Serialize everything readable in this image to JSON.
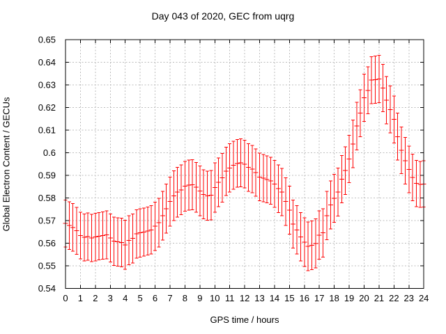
{
  "chart_data": {
    "type": "scatter",
    "subtype": "yerrorbars",
    "title": "Day 043 of 2020, GEC from uqrg",
    "xlabel": "GPS time / hours",
    "ylabel": "Global Electron Content / GECUs",
    "xlim": [
      0,
      24
    ],
    "ylim": [
      0.54,
      0.65
    ],
    "x_ticks": [
      0,
      1,
      2,
      3,
      4,
      5,
      6,
      7,
      8,
      9,
      10,
      11,
      12,
      13,
      14,
      15,
      16,
      17,
      18,
      19,
      20,
      21,
      22,
      23,
      24
    ],
    "y_ticks": [
      0.54,
      0.55,
      0.56,
      0.57,
      0.58,
      0.59,
      0.6,
      0.61,
      0.62,
      0.63,
      0.64,
      0.65
    ],
    "y_tick_labels": [
      "0.54",
      "0.55",
      "0.56",
      "0.57",
      "0.58",
      "0.59",
      "0.6",
      "0.61",
      "0.62",
      "0.63",
      "0.64",
      "0.65"
    ],
    "grid": true,
    "legend": "none",
    "colors": {
      "series": "#ff0000",
      "grid": "#bcbcbc",
      "axis": "#000000",
      "background": "#ffffff"
    },
    "points_format": [
      "gps_hour",
      "gec_gecu",
      "error_gecu"
    ],
    "points": [
      [
        0,
        0.5687,
        0.0104
      ],
      [
        0.25,
        0.5678,
        0.0105
      ],
      [
        0.5,
        0.567,
        0.0105
      ],
      [
        0.75,
        0.5655,
        0.0104
      ],
      [
        1,
        0.5634,
        0.0103
      ],
      [
        1.25,
        0.5626,
        0.0104
      ],
      [
        1.5,
        0.5629,
        0.0105
      ],
      [
        1.75,
        0.5623,
        0.0104
      ],
      [
        2,
        0.5627,
        0.0105
      ],
      [
        2.25,
        0.5631,
        0.0105
      ],
      [
        2.5,
        0.5634,
        0.0105
      ],
      [
        2.75,
        0.5637,
        0.0106
      ],
      [
        3,
        0.5623,
        0.0106
      ],
      [
        3.25,
        0.5609,
        0.0107
      ],
      [
        3.5,
        0.5606,
        0.0107
      ],
      [
        3.75,
        0.5603,
        0.0108
      ],
      [
        4,
        0.5593,
        0.0109
      ],
      [
        4.25,
        0.5613,
        0.0108
      ],
      [
        4.5,
        0.5621,
        0.0108
      ],
      [
        4.75,
        0.5641,
        0.0107
      ],
      [
        5,
        0.5646,
        0.0107
      ],
      [
        5.25,
        0.5649,
        0.0106
      ],
      [
        5.5,
        0.5654,
        0.0106
      ],
      [
        5.75,
        0.5659,
        0.0107
      ],
      [
        6,
        0.5675,
        0.0107
      ],
      [
        6.25,
        0.5691,
        0.0108
      ],
      [
        6.5,
        0.5722,
        0.0108
      ],
      [
        6.75,
        0.5753,
        0.0109
      ],
      [
        7,
        0.5784,
        0.0109
      ],
      [
        7.25,
        0.581,
        0.011
      ],
      [
        7.5,
        0.5826,
        0.011
      ],
      [
        7.75,
        0.5836,
        0.011
      ],
      [
        8,
        0.5852,
        0.011
      ],
      [
        8.25,
        0.5857,
        0.0111
      ],
      [
        8.5,
        0.5859,
        0.0111
      ],
      [
        8.75,
        0.5847,
        0.011
      ],
      [
        9,
        0.5831,
        0.011
      ],
      [
        9.25,
        0.5816,
        0.0109
      ],
      [
        9.5,
        0.581,
        0.0109
      ],
      [
        9.75,
        0.5812,
        0.0109
      ],
      [
        10,
        0.5846,
        0.0109
      ],
      [
        10.25,
        0.5869,
        0.0108
      ],
      [
        10.5,
        0.5889,
        0.0108
      ],
      [
        10.75,
        0.5918,
        0.0107
      ],
      [
        11,
        0.5933,
        0.0107
      ],
      [
        11.25,
        0.5945,
        0.0106
      ],
      [
        11.5,
        0.5953,
        0.0106
      ],
      [
        11.75,
        0.5956,
        0.0106
      ],
      [
        12,
        0.595,
        0.0106
      ],
      [
        12.25,
        0.5935,
        0.0105
      ],
      [
        12.5,
        0.5928,
        0.0105
      ],
      [
        12.75,
        0.5912,
        0.0105
      ],
      [
        13,
        0.5893,
        0.0105
      ],
      [
        13.25,
        0.5888,
        0.0105
      ],
      [
        13.5,
        0.5882,
        0.0104
      ],
      [
        13.75,
        0.5876,
        0.0104
      ],
      [
        14,
        0.5862,
        0.0104
      ],
      [
        14.25,
        0.5841,
        0.0105
      ],
      [
        14.5,
        0.5826,
        0.0105
      ],
      [
        14.75,
        0.5784,
        0.0106
      ],
      [
        15,
        0.5746,
        0.0106
      ],
      [
        15.25,
        0.5685,
        0.0106
      ],
      [
        15.5,
        0.5659,
        0.0107
      ],
      [
        15.75,
        0.5628,
        0.0107
      ],
      [
        16,
        0.5605,
        0.0108
      ],
      [
        16.25,
        0.5586,
        0.0108
      ],
      [
        16.5,
        0.5591,
        0.0108
      ],
      [
        16.75,
        0.5599,
        0.0108
      ],
      [
        17,
        0.5636,
        0.0107
      ],
      [
        17.25,
        0.5646,
        0.0107
      ],
      [
        17.5,
        0.5722,
        0.0107
      ],
      [
        17.75,
        0.5769,
        0.0106
      ],
      [
        18,
        0.5798,
        0.0106
      ],
      [
        18.25,
        0.5826,
        0.0106
      ],
      [
        18.5,
        0.5883,
        0.0105
      ],
      [
        18.75,
        0.5921,
        0.0105
      ],
      [
        19,
        0.5972,
        0.0105
      ],
      [
        19.25,
        0.6039,
        0.0105
      ],
      [
        19.5,
        0.6118,
        0.0105
      ],
      [
        19.75,
        0.6175,
        0.0104
      ],
      [
        20,
        0.6243,
        0.0104
      ],
      [
        20.25,
        0.6276,
        0.0104
      ],
      [
        20.5,
        0.6321,
        0.0104
      ],
      [
        20.75,
        0.6323,
        0.0105
      ],
      [
        21,
        0.6326,
        0.0105
      ],
      [
        21.25,
        0.6286,
        0.0105
      ],
      [
        21.5,
        0.6232,
        0.0105
      ],
      [
        21.75,
        0.6191,
        0.0104
      ],
      [
        22,
        0.6147,
        0.0104
      ],
      [
        22.25,
        0.6071,
        0.0104
      ],
      [
        22.5,
        0.6011,
        0.0103
      ],
      [
        22.75,
        0.5964,
        0.0103
      ],
      [
        23,
        0.5926,
        0.0103
      ],
      [
        23.25,
        0.5891,
        0.0103
      ],
      [
        23.5,
        0.5864,
        0.0102
      ],
      [
        23.75,
        0.586,
        0.0102
      ],
      [
        24,
        0.5862,
        0.0102
      ]
    ]
  }
}
